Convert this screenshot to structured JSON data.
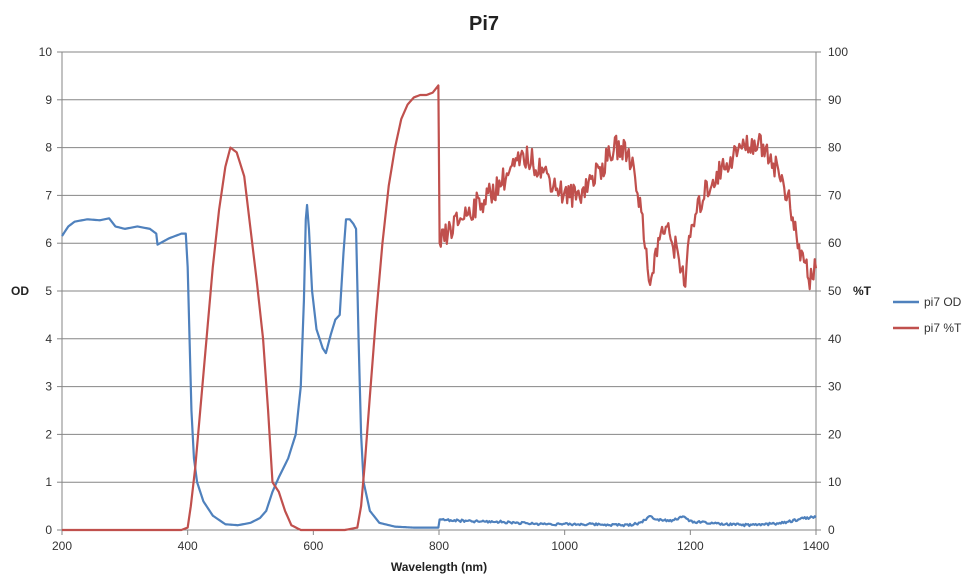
{
  "chart_data": {
    "type": "line",
    "title": "Pi7",
    "xlabel": "Wavelength (nm)",
    "ylabel_left": "OD",
    "ylabel_right": "%T",
    "xlim": [
      200,
      1400
    ],
    "ylim_left": [
      0,
      10
    ],
    "ylim_right": [
      0,
      100
    ],
    "x_ticks": [
      "200",
      "400",
      "600",
      "800",
      "1000",
      "1200",
      "1400"
    ],
    "y_ticks_left": [
      "0",
      "1",
      "2",
      "3",
      "4",
      "5",
      "6",
      "7",
      "8",
      "9",
      "10"
    ],
    "y_ticks_right": [
      "0",
      "10",
      "20",
      "30",
      "40",
      "50",
      "60",
      "70",
      "80",
      "90",
      "100"
    ],
    "grid": true,
    "legend_position": "right",
    "series": [
      {
        "name": "pi7 OD",
        "axis": "left",
        "color": "#4f81bd",
        "points": [
          [
            200,
            6.15
          ],
          [
            210,
            6.35
          ],
          [
            220,
            6.45
          ],
          [
            240,
            6.5
          ],
          [
            260,
            6.48
          ],
          [
            275,
            6.52
          ],
          [
            285,
            6.35
          ],
          [
            300,
            6.3
          ],
          [
            320,
            6.35
          ],
          [
            340,
            6.3
          ],
          [
            350,
            6.2
          ],
          [
            352,
            5.97
          ],
          [
            370,
            6.1
          ],
          [
            390,
            6.2
          ],
          [
            397,
            6.2
          ],
          [
            400,
            5.5
          ],
          [
            403,
            4.0
          ],
          [
            406,
            2.5
          ],
          [
            410,
            1.5
          ],
          [
            415,
            1.0
          ],
          [
            425,
            0.6
          ],
          [
            440,
            0.3
          ],
          [
            460,
            0.12
          ],
          [
            480,
            0.1
          ],
          [
            500,
            0.15
          ],
          [
            515,
            0.25
          ],
          [
            525,
            0.4
          ],
          [
            535,
            0.8
          ],
          [
            545,
            1.1
          ],
          [
            560,
            1.5
          ],
          [
            572,
            2.0
          ],
          [
            580,
            3.0
          ],
          [
            585,
            4.8
          ],
          [
            588,
            6.5
          ],
          [
            590,
            6.8
          ],
          [
            593,
            6.3
          ],
          [
            598,
            5.0
          ],
          [
            605,
            4.2
          ],
          [
            615,
            3.8
          ],
          [
            620,
            3.7
          ],
          [
            628,
            4.1
          ],
          [
            635,
            4.4
          ],
          [
            642,
            4.5
          ],
          [
            648,
            5.8
          ],
          [
            652,
            6.5
          ],
          [
            658,
            6.5
          ],
          [
            664,
            6.4
          ],
          [
            668,
            6.3
          ],
          [
            672,
            4.0
          ],
          [
            676,
            2.0
          ],
          [
            680,
            1.0
          ],
          [
            690,
            0.4
          ],
          [
            705,
            0.15
          ],
          [
            730,
            0.07
          ],
          [
            760,
            0.05
          ],
          [
            780,
            0.05
          ],
          [
            799,
            0.05
          ],
          [
            801,
            0.22
          ],
          [
            850,
            0.18
          ],
          [
            900,
            0.17
          ],
          [
            950,
            0.13
          ],
          [
            1000,
            0.12
          ],
          [
            1050,
            0.12
          ],
          [
            1100,
            0.1
          ],
          [
            1120,
            0.15
          ],
          [
            1135,
            0.28
          ],
          [
            1150,
            0.22
          ],
          [
            1170,
            0.2
          ],
          [
            1190,
            0.28
          ],
          [
            1200,
            0.18
          ],
          [
            1250,
            0.12
          ],
          [
            1300,
            0.1
          ],
          [
            1350,
            0.15
          ],
          [
            1380,
            0.25
          ],
          [
            1400,
            0.27
          ]
        ]
      },
      {
        "name": "pi7 %T",
        "axis": "right",
        "color": "#c0504d",
        "points": [
          [
            200,
            0
          ],
          [
            300,
            0
          ],
          [
            390,
            0
          ],
          [
            400,
            0.5
          ],
          [
            405,
            5
          ],
          [
            412,
            13
          ],
          [
            420,
            25
          ],
          [
            430,
            40
          ],
          [
            440,
            55
          ],
          [
            450,
            67
          ],
          [
            460,
            76
          ],
          [
            468,
            80
          ],
          [
            478,
            79
          ],
          [
            490,
            74
          ],
          [
            500,
            63
          ],
          [
            510,
            52
          ],
          [
            520,
            40
          ],
          [
            528,
            25
          ],
          [
            535,
            10
          ],
          [
            545,
            8
          ],
          [
            555,
            4
          ],
          [
            565,
            1
          ],
          [
            580,
            0
          ],
          [
            600,
            0
          ],
          [
            650,
            0
          ],
          [
            670,
            0.5
          ],
          [
            676,
            5
          ],
          [
            682,
            14
          ],
          [
            690,
            28
          ],
          [
            700,
            45
          ],
          [
            710,
            60
          ],
          [
            720,
            72
          ],
          [
            730,
            80
          ],
          [
            740,
            86
          ],
          [
            750,
            89
          ],
          [
            760,
            90.5
          ],
          [
            770,
            91
          ],
          [
            780,
            91
          ],
          [
            790,
            91.5
          ],
          [
            799,
            93
          ],
          [
            801,
            60
          ],
          [
            820,
            63
          ],
          [
            840,
            66
          ],
          [
            860,
            68
          ],
          [
            880,
            70
          ],
          [
            900,
            73
          ],
          [
            920,
            76
          ],
          [
            940,
            78
          ],
          [
            960,
            76
          ],
          [
            980,
            73
          ],
          [
            1000,
            70
          ],
          [
            1020,
            70
          ],
          [
            1040,
            73
          ],
          [
            1060,
            76
          ],
          [
            1080,
            80
          ],
          [
            1100,
            79
          ],
          [
            1110,
            76
          ],
          [
            1120,
            68
          ],
          [
            1130,
            58
          ],
          [
            1138,
            51
          ],
          [
            1145,
            58
          ],
          [
            1155,
            63
          ],
          [
            1165,
            62
          ],
          [
            1180,
            58
          ],
          [
            1192,
            52
          ],
          [
            1200,
            62
          ],
          [
            1220,
            70
          ],
          [
            1240,
            74
          ],
          [
            1260,
            77
          ],
          [
            1280,
            80
          ],
          [
            1300,
            81
          ],
          [
            1320,
            80
          ],
          [
            1340,
            75
          ],
          [
            1355,
            70
          ],
          [
            1365,
            63
          ],
          [
            1375,
            58
          ],
          [
            1385,
            55
          ],
          [
            1390,
            52
          ],
          [
            1400,
            56
          ]
        ]
      }
    ]
  }
}
